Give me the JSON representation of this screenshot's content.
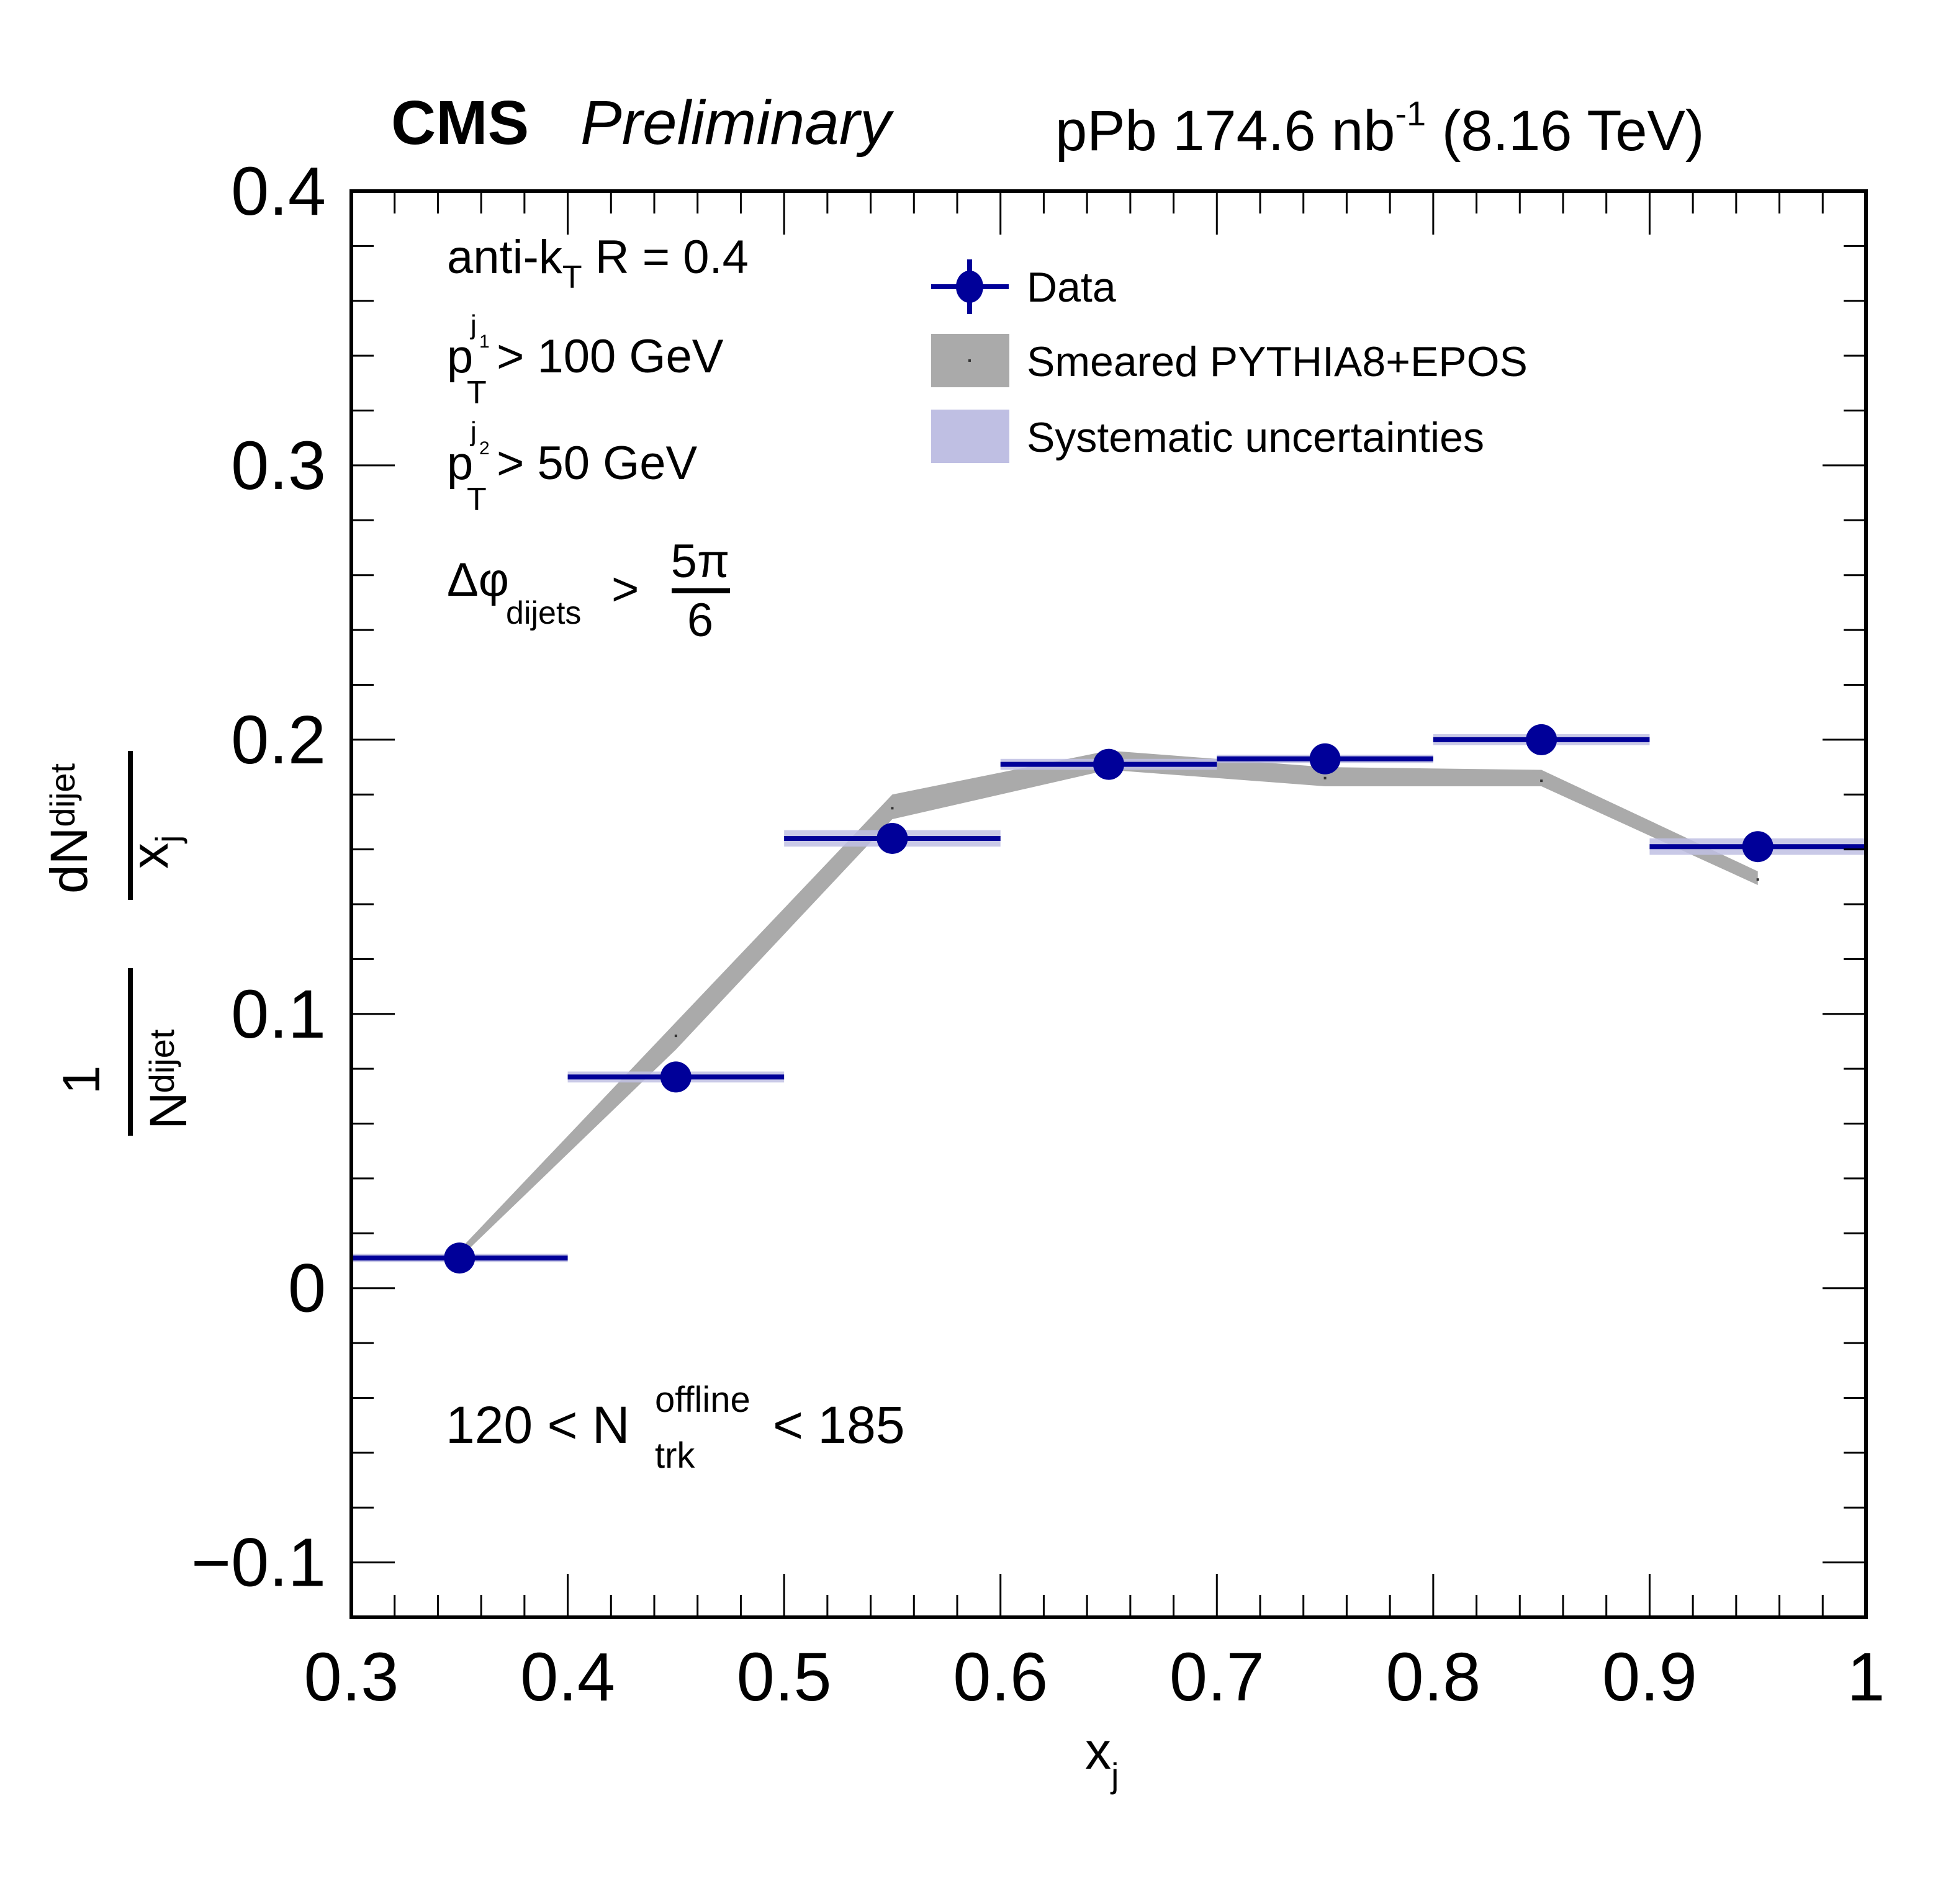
{
  "chart_data": {
    "type": "scatter",
    "title_left_bold": "CMS",
    "title_left_italic": "Preliminary",
    "title_right": {
      "prefix": "pPb 174.6 nb",
      "superscript": "-1",
      "suffix": " (8.16 TeV)"
    },
    "xlabel": {
      "main": "x",
      "sub": "j"
    },
    "ylabel": {
      "outer_num": "1",
      "outer_den_main": "N",
      "outer_den_sub": "dijet",
      "inner_num_main": "dN",
      "inner_num_sub": "dijet",
      "inner_den_main": "x",
      "inner_den_sub": "j"
    },
    "xlim": [
      0.3,
      1.0
    ],
    "ylim": [
      -0.12,
      0.4
    ],
    "x_ticks": [
      {
        "value": 0.3,
        "label": "0.3"
      },
      {
        "value": 0.4,
        "label": "0.4"
      },
      {
        "value": 0.5,
        "label": "0.5"
      },
      {
        "value": 0.6,
        "label": "0.6"
      },
      {
        "value": 0.7,
        "label": "0.7"
      },
      {
        "value": 0.8,
        "label": "0.8"
      },
      {
        "value": 0.9,
        "label": "0.9"
      },
      {
        "value": 1.0,
        "label": "1"
      }
    ],
    "x_minor_step": 0.02,
    "y_ticks": [
      {
        "value": -0.1,
        "label": "−0.1"
      },
      {
        "value": 0.0,
        "label": "0"
      },
      {
        "value": 0.1,
        "label": "0.1"
      },
      {
        "value": 0.2,
        "label": "0.2"
      },
      {
        "value": 0.3,
        "label": "0.3"
      },
      {
        "value": 0.4,
        "label": "0.4"
      }
    ],
    "y_minor_step": 0.02,
    "grid": false,
    "legend_position": "top-center",
    "legend": [
      {
        "key": "data",
        "label": "Data"
      },
      {
        "key": "model",
        "label": "Smeared PYTHIA8+EPOS"
      },
      {
        "key": "syst",
        "label": "Systematic uncertainties"
      }
    ],
    "annotations": {
      "jet_algo": {
        "main": "anti-k",
        "sub": "T",
        "suffix": " R = 0.4"
      },
      "lead_cut": {
        "p": "p",
        "sub": "T",
        "sup": "j",
        "supsub": "1",
        "suffix": " > 100 GeV"
      },
      "sublead_cut": {
        "p": "p",
        "sub": "T",
        "sup": "j",
        "supsub": "2",
        "suffix": " > 50 GeV"
      },
      "dphi_cut": {
        "main": "Δφ",
        "sub": "dijets",
        "op": " > ",
        "num": "5π",
        "den": "6"
      },
      "multiplicity": {
        "prefix": "120 < N",
        "sup": "offline",
        "sub": "trk",
        "suffix": " < 185"
      }
    },
    "series": [
      {
        "name": "Data",
        "color": "#000099",
        "bin_edges": [
          [
            0.3,
            0.4
          ],
          [
            0.4,
            0.5
          ],
          [
            0.5,
            0.6
          ],
          [
            0.6,
            0.7
          ],
          [
            0.7,
            0.8
          ],
          [
            0.8,
            0.9
          ],
          [
            0.9,
            1.0
          ]
        ],
        "x": [
          0.35,
          0.45,
          0.55,
          0.65,
          0.75,
          0.85,
          0.95
        ],
        "y": [
          0.011,
          0.077,
          0.164,
          0.191,
          0.193,
          0.2,
          0.161
        ],
        "syst": [
          0.0005,
          0.002,
          0.003,
          0.002,
          0.0005,
          0.002,
          0.003
        ]
      },
      {
        "name": "Smeared PYTHIA8+EPOS",
        "color": "#aaaaaa",
        "x": [
          0.35,
          0.45,
          0.55,
          0.65,
          0.75,
          0.85,
          0.95
        ],
        "y": [
          0.012,
          0.092,
          0.175,
          0.193,
          0.186,
          0.185,
          0.149
        ],
        "y_low": [
          0.011,
          0.087,
          0.171,
          0.189,
          0.183,
          0.183,
          0.147
        ],
        "y_high": [
          0.014,
          0.097,
          0.18,
          0.196,
          0.19,
          0.189,
          0.152
        ]
      }
    ],
    "colors": {
      "data": "#000099",
      "syst_fill": "#bfbfe3",
      "model_fill": "#aaaaaa",
      "axis": "#000000"
    }
  }
}
